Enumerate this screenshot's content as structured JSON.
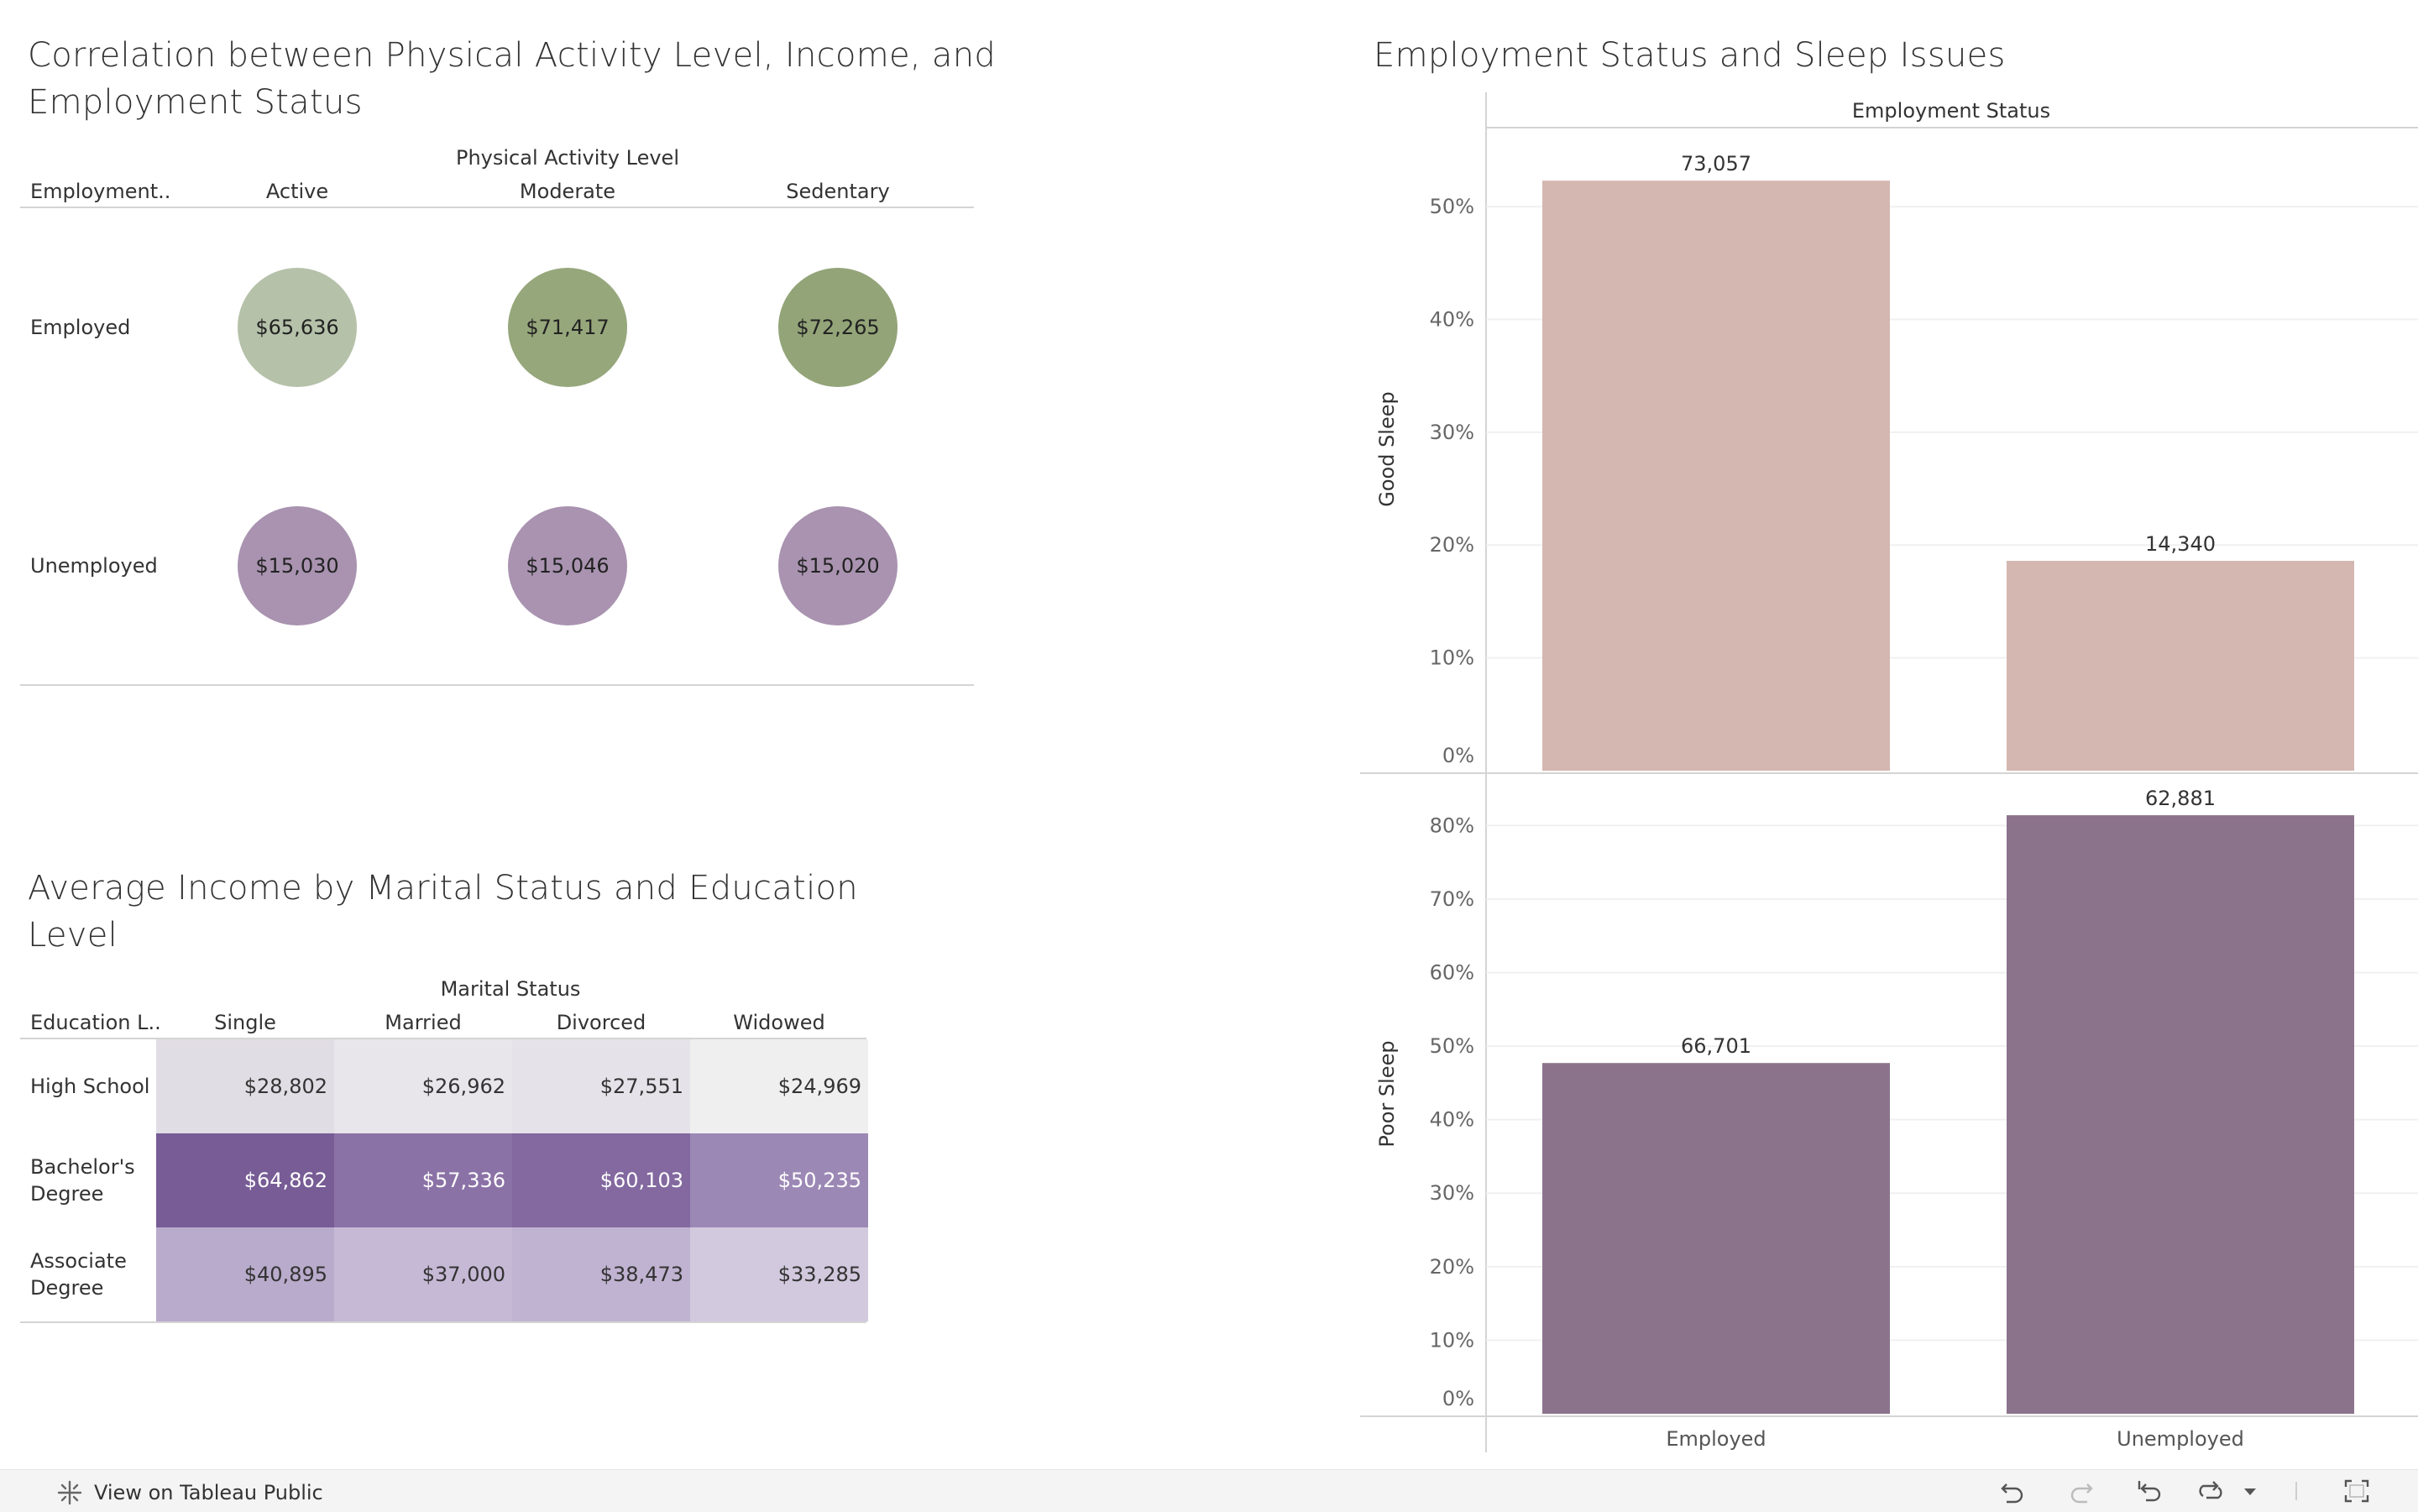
{
  "dashboard": {
    "activity_chart": {
      "title_line1": "Correlation between Physical Activity Level, Income, and",
      "title_line2": "Employment Status",
      "column_group_header": "Physical Activity Level",
      "row_header": "Employment..",
      "columns": [
        "Active",
        "Moderate",
        "Sedentary"
      ],
      "rows": [
        {
          "label": "Employed",
          "cells": [
            {
              "value": "$65,636",
              "color": "#b5c1a9"
            },
            {
              "value": "$71,417",
              "color": "#96a77b"
            },
            {
              "value": "$72,265",
              "color": "#93a478"
            }
          ]
        },
        {
          "label": "Unemployed",
          "cells": [
            {
              "value": "$15,030",
              "color": "#a993b0"
            },
            {
              "value": "$15,046",
              "color": "#a993b0"
            },
            {
              "value": "$15,020",
              "color": "#a993b0"
            }
          ]
        }
      ]
    },
    "income_heatmap": {
      "title_line1": "Average Income by Marital Status and Education",
      "title_line2": "Level",
      "column_group_header": "Marital Status",
      "row_header": "Education L..",
      "columns": [
        "Single",
        "Married",
        "Divorced",
        "Widowed"
      ],
      "rows": [
        {
          "label_line1": "High School",
          "label_line2": "",
          "cells": [
            {
              "value": "$28,802",
              "color": "#e1dde5",
              "text_color": "#333333"
            },
            {
              "value": "$26,962",
              "color": "#e8e5eb",
              "text_color": "#333333"
            },
            {
              "value": "$27,551",
              "color": "#e5e2e9",
              "text_color": "#333333"
            },
            {
              "value": "$24,969",
              "color": "#efeff0",
              "text_color": "#333333"
            }
          ]
        },
        {
          "label_line1": "Bachelor's",
          "label_line2": "Degree",
          "cells": [
            {
              "value": "$64,862",
              "color": "#775c95",
              "text_color": "#ffffff"
            },
            {
              "value": "$57,336",
              "color": "#8b72a6",
              "text_color": "#ffffff"
            },
            {
              "value": "$60,103",
              "color": "#83699f",
              "text_color": "#ffffff"
            },
            {
              "value": "$50,235",
              "color": "#9c88b5",
              "text_color": "#ffffff"
            }
          ]
        },
        {
          "label_line1": "Associate",
          "label_line2": "Degree",
          "cells": [
            {
              "value": "$40,895",
              "color": "#b9abcc",
              "text_color": "#333333"
            },
            {
              "value": "$37,000",
              "color": "#c6b9d6",
              "text_color": "#333333"
            },
            {
              "value": "$38,473",
              "color": "#c0b3d1",
              "text_color": "#333333"
            },
            {
              "value": "$33,285",
              "color": "#d2c9de",
              "text_color": "#333333"
            }
          ]
        }
      ]
    },
    "sleep_chart": {
      "title": "Employment Status and Sleep Issues"
    }
  },
  "chart_data": [
    {
      "type": "scatter",
      "title": "Correlation between Physical Activity Level, Income, and Employment Status",
      "x_header": "Physical Activity Level",
      "y_header": "Employment..",
      "x": [
        "Active",
        "Moderate",
        "Sedentary"
      ],
      "series": [
        {
          "name": "Employed",
          "values": [
            65636,
            71417,
            72265
          ]
        },
        {
          "name": "Unemployed",
          "values": [
            15030,
            15046,
            15020
          ]
        }
      ]
    },
    {
      "type": "heatmap",
      "title": "Average Income by Marital Status and Education Level",
      "x_header": "Marital Status",
      "y_header": "Education L..",
      "x": [
        "Single",
        "Married",
        "Divorced",
        "Widowed"
      ],
      "series": [
        {
          "name": "High School",
          "values": [
            28802,
            26962,
            27551,
            24969
          ]
        },
        {
          "name": "Bachelor's Degree",
          "values": [
            64862,
            57336,
            60103,
            50235
          ]
        },
        {
          "name": "Associate Degree",
          "values": [
            40895,
            37000,
            38473,
            33285
          ]
        }
      ]
    },
    {
      "type": "bar",
      "title": "Employment Status and Sleep Issues",
      "x_header": "Employment Status",
      "categories": [
        "Employed",
        "Unemployed"
      ],
      "grid": true,
      "panels": [
        {
          "ylabel": "Good Sleep",
          "ylim": [
            0,
            57
          ],
          "y_ticks": [
            0,
            10,
            20,
            30,
            40,
            50
          ],
          "tick_labels": [
            "0%",
            "10%",
            "20%",
            "30%",
            "40%",
            "50%"
          ],
          "color": "#d4b7b1",
          "values": [
            52.3,
            18.6
          ],
          "labels": [
            "73,057",
            "14,340"
          ]
        },
        {
          "ylabel": "Poor Sleep",
          "ylim": [
            0,
            87
          ],
          "y_ticks": [
            0,
            10,
            20,
            30,
            40,
            50,
            60,
            70,
            80
          ],
          "tick_labels": [
            "0%",
            "10%",
            "20%",
            "30%",
            "40%",
            "50%",
            "60%",
            "70%",
            "80%"
          ],
          "color": "#8c738c",
          "values": [
            47.7,
            81.4
          ],
          "labels": [
            "66,701",
            "62,881"
          ]
        }
      ]
    }
  ],
  "footer": {
    "view_label": "View on Tableau Public",
    "icons": [
      "undo-icon",
      "redo-icon",
      "revert-icon",
      "refresh-icon",
      "dropdown-icon",
      "fullscreen-icon"
    ]
  }
}
